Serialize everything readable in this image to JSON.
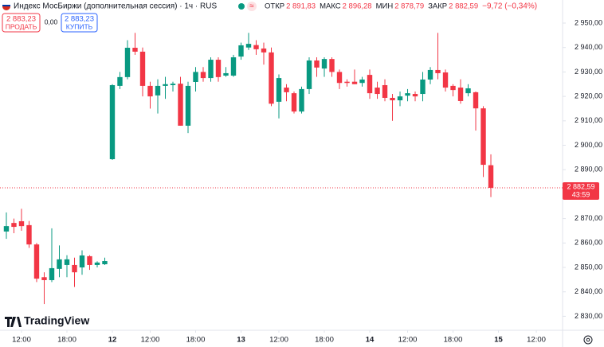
{
  "header": {
    "title": "Индекс МосБиржи (дополнительная сессия) · 1ч · RUS",
    "ohlc": [
      {
        "label": "ОТКР",
        "value": "2 891,83"
      },
      {
        "label": "МАКС",
        "value": "2 896,28"
      },
      {
        "label": "МИН",
        "value": "2 878,79"
      },
      {
        "label": "ЗАКР",
        "value": "2 882,59"
      }
    ],
    "change": "−9,72 (−0,34%)"
  },
  "trade": {
    "sell_price": "2 883,23",
    "sell_label": "ПРОДАТЬ",
    "spread": "0,00",
    "buy_price": "2 883,23",
    "buy_label": "КУПИТЬ"
  },
  "price_label": {
    "price": "2 882,59",
    "countdown": "43:59"
  },
  "logo": "TradingView",
  "chart_data": {
    "type": "candlestick",
    "up_color": "#089981",
    "down_color": "#f23645",
    "open": [
      2864.7,
      2868.2,
      2868.9,
      2867.3,
      2859.4,
      2846,
      2844.8,
      2849.4,
      2851,
      2851,
      2850,
      2854.6,
      2851,
      2851.3,
      2894.3,
      2924.3,
      2927.9,
      2939.9,
      2938.3,
      2924.3,
      2920.4,
      2924.3,
      2924.6,
      2925.2,
      2908,
      2925.9,
      2930,
      2927.5,
      2935,
      2928.5,
      2928.5,
      2936.3,
      2940,
      2941,
      2939.6,
      2938,
      2917.8,
      2923.6,
      2921.3,
      2913.8,
      2923,
      2934.7,
      2931.4,
      2935.3,
      2930,
      2926,
      2926,
      2925.5,
      2928.8,
      2923.6,
      2924.6,
      2919.4,
      2918.4,
      2920.3,
      2921,
      2921,
      2926.9,
      2930.8,
      2929.8,
      2924.3,
      2923.6,
      2921.3,
      2921.7,
      2915.1,
      2891.83
    ],
    "high": [
      2872.5,
      2870,
      2874,
      2869,
      2860,
      2848,
      2866,
      2859,
      2855,
      2854,
      2857,
      2855,
      2852.5,
      2854,
      2925,
      2930,
      2943,
      2946,
      2940,
      2926,
      2927,
      2928,
      2926,
      2928,
      2926,
      2932,
      2932,
      2936,
      2936,
      2932,
      2937,
      2942,
      2946,
      2943,
      2942,
      2940,
      2929,
      2925,
      2922,
      2924,
      2936,
      2936,
      2936,
      2936,
      2931,
      2927,
      2931,
      2928,
      2931,
      2926,
      2927,
      2921,
      2922,
      2923,
      2922,
      2930,
      2932,
      2946,
      2931,
      2925,
      2927,
      2925,
      2922,
      2916,
      2896.28
    ],
    "low": [
      2861.7,
      2864,
      2865,
      2858,
      2844,
      2835,
      2844,
      2846,
      2846,
      2842,
      2847,
      2849,
      2850,
      2851,
      2894,
      2923,
      2927,
      2937,
      2920,
      2915,
      2913,
      2919,
      2922,
      2908,
      2905,
      2922,
      2926,
      2926,
      2926,
      2928,
      2928,
      2935,
      2939,
      2937,
      2933,
      2916,
      2911,
      2918,
      2913,
      2913,
      2921,
      2928,
      2928,
      2928,
      2923,
      2924,
      2925,
      2924,
      2919,
      2919,
      2918,
      2910,
      2916,
      2918,
      2918,
      2918,
      2925,
      2927,
      2922,
      2920,
      2917,
      2920,
      2906,
      2887,
      2878.79
    ],
    "close": [
      2866.9,
      2866.6,
      2866.9,
      2859.4,
      2845.4,
      2844.8,
      2849.7,
      2853.3,
      2853.3,
      2848,
      2854.9,
      2851,
      2852,
      2852.6,
      2924.6,
      2927.9,
      2939.9,
      2938.3,
      2924.3,
      2920,
      2924.3,
      2925,
      2925.2,
      2908,
      2924.3,
      2930,
      2927.5,
      2935,
      2927.9,
      2929.5,
      2936,
      2940.9,
      2941.5,
      2939.3,
      2938,
      2917,
      2927.5,
      2921.7,
      2913.8,
      2923,
      2934.7,
      2931.8,
      2935.3,
      2930,
      2925.5,
      2925.5,
      2925,
      2926.9,
      2921.3,
      2921,
      2919.4,
      2918.4,
      2920,
      2921.3,
      2920,
      2926.9,
      2930.8,
      2929.5,
      2923.6,
      2922.6,
      2918.1,
      2923.3,
      2915.1,
      2892,
      2882.59
    ],
    "xlim": [
      -0.84,
      73.47
    ],
    "xticks": [
      {
        "value": 2,
        "label": "12:00"
      },
      {
        "value": 8,
        "label": "18:00"
      },
      {
        "value": 14,
        "label": "12"
      },
      {
        "value": 19,
        "label": "12:00"
      },
      {
        "value": 25,
        "label": "18:00"
      },
      {
        "value": 31,
        "label": "13"
      },
      {
        "value": 36,
        "label": "12:00"
      },
      {
        "value": 42,
        "label": "18:00"
      },
      {
        "value": 48,
        "label": "14"
      },
      {
        "value": 53,
        "label": "12:00"
      },
      {
        "value": 59,
        "label": "18:00"
      },
      {
        "value": 65,
        "label": "15"
      },
      {
        "value": 70,
        "label": "12:00"
      }
    ],
    "ylim": [
      2824.27,
      2959.45
    ],
    "yticks": [
      {
        "value": 2830,
        "label": "2 830,00"
      },
      {
        "value": 2840,
        "label": "2 840,00"
      },
      {
        "value": 2850,
        "label": "2 850,00"
      },
      {
        "value": 2860,
        "label": "2 860,00"
      },
      {
        "value": 2870,
        "label": "2 870,00"
      },
      {
        "value": 2890,
        "label": "2 890,00"
      },
      {
        "value": 2900,
        "label": "2 900,00"
      },
      {
        "value": 2910,
        "label": "2 910,00"
      },
      {
        "value": 2920,
        "label": "2 920,00"
      },
      {
        "value": 2930,
        "label": "2 930,00"
      },
      {
        "value": 2940,
        "label": "2 940,00"
      },
      {
        "value": 2950,
        "label": "2 950,00"
      }
    ]
  }
}
